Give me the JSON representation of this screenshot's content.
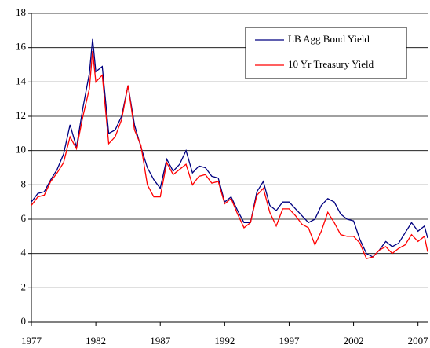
{
  "chart_data": {
    "type": "line",
    "x": [
      1977.0,
      1977.5,
      1978.0,
      1978.5,
      1979.0,
      1979.5,
      1980.0,
      1980.5,
      1981.0,
      1981.5,
      1981.75,
      1982.0,
      1982.5,
      1983.0,
      1983.5,
      1984.0,
      1984.5,
      1985.0,
      1985.5,
      1986.0,
      1986.5,
      1987.0,
      1987.5,
      1988.0,
      1988.5,
      1989.0,
      1989.5,
      1990.0,
      1990.5,
      1991.0,
      1991.5,
      1992.0,
      1992.5,
      1993.0,
      1993.5,
      1994.0,
      1994.5,
      1995.0,
      1995.5,
      1996.0,
      1996.5,
      1997.0,
      1997.5,
      1998.0,
      1998.5,
      1999.0,
      1999.5,
      2000.0,
      2000.5,
      2001.0,
      2001.5,
      2002.0,
      2002.5,
      2003.0,
      2003.5,
      2004.0,
      2004.5,
      2005.0,
      2005.5,
      2006.0,
      2006.5,
      2007.0,
      2007.5,
      2007.75
    ],
    "series": [
      {
        "name": "LB Agg Bond Yield",
        "color": "#000080",
        "values": [
          7.0,
          7.5,
          7.6,
          8.3,
          8.9,
          9.8,
          11.5,
          10.2,
          12.5,
          14.5,
          16.5,
          14.6,
          14.9,
          11.0,
          11.2,
          12.0,
          13.8,
          11.5,
          10.2,
          9.0,
          8.3,
          7.8,
          9.5,
          8.8,
          9.2,
          10.0,
          8.7,
          9.1,
          9.0,
          8.5,
          8.4,
          7.0,
          7.3,
          6.5,
          5.8,
          5.8,
          7.6,
          8.2,
          6.8,
          6.5,
          7.0,
          7.0,
          6.6,
          6.2,
          5.8,
          6.0,
          6.8,
          7.2,
          7.0,
          6.3,
          6.0,
          5.9,
          4.8,
          4.0,
          3.8,
          4.2,
          4.7,
          4.4,
          4.6,
          5.2,
          5.8,
          5.3,
          5.6,
          4.9
        ]
      },
      {
        "name": "10 Yr Treasury Yield",
        "color": "#ff0000",
        "values": [
          6.8,
          7.3,
          7.4,
          8.2,
          8.7,
          9.3,
          10.8,
          10.1,
          12.0,
          13.6,
          15.8,
          14.0,
          14.4,
          10.4,
          10.8,
          11.8,
          13.8,
          11.2,
          10.3,
          8.0,
          7.3,
          7.3,
          9.3,
          8.6,
          8.9,
          9.2,
          8.0,
          8.5,
          8.6,
          8.1,
          8.2,
          6.9,
          7.2,
          6.3,
          5.5,
          5.8,
          7.4,
          7.8,
          6.4,
          5.6,
          6.6,
          6.6,
          6.2,
          5.7,
          5.5,
          4.5,
          5.3,
          6.4,
          5.8,
          5.1,
          5.0,
          5.0,
          4.6,
          3.7,
          3.8,
          4.2,
          4.4,
          4.0,
          4.3,
          4.5,
          5.1,
          4.7,
          5.0,
          4.1
        ]
      }
    ],
    "xlim": [
      1977,
      2007.75
    ],
    "xticks": [
      1977,
      1982,
      1987,
      1992,
      1997,
      2002,
      2007
    ],
    "ylim": [
      0,
      18
    ],
    "yticks": [
      0,
      2,
      4,
      6,
      8,
      10,
      12,
      14,
      16,
      18
    ],
    "grid": true,
    "legend": "upper right"
  }
}
